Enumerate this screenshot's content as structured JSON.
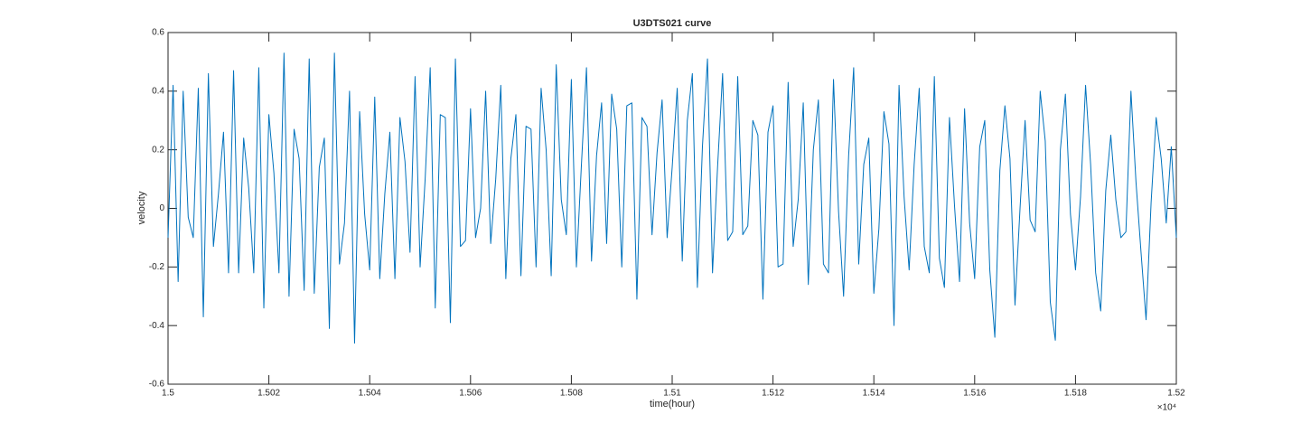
{
  "chart_data": {
    "type": "line",
    "title": "U3DTS021 curve",
    "xlabel": "time(hour)",
    "ylabel": "velocity",
    "x_multiplier": "×10⁴",
    "x": [
      15000,
      15001,
      15002,
      15003,
      15004,
      15005,
      15006,
      15007,
      15008,
      15009,
      15010,
      15011,
      15012,
      15013,
      15014,
      15015,
      15016,
      15017,
      15018,
      15019,
      15020,
      15021,
      15022,
      15023,
      15024,
      15025,
      15026,
      15027,
      15028,
      15029,
      15030,
      15031,
      15032,
      15033,
      15034,
      15035,
      15036,
      15037,
      15038,
      15039,
      15040,
      15041,
      15042,
      15043,
      15044,
      15045,
      15046,
      15047,
      15048,
      15049,
      15050,
      15051,
      15052,
      15053,
      15054,
      15055,
      15056,
      15057,
      15058,
      15059,
      15060,
      15061,
      15062,
      15063,
      15064,
      15065,
      15066,
      15067,
      15068,
      15069,
      15070,
      15071,
      15072,
      15073,
      15074,
      15075,
      15076,
      15077,
      15078,
      15079,
      15080,
      15081,
      15082,
      15083,
      15084,
      15085,
      15086,
      15087,
      15088,
      15089,
      15090,
      15091,
      15092,
      15093,
      15094,
      15095,
      15096,
      15097,
      15098,
      15099,
      15100,
      15101,
      15102,
      15103,
      15104,
      15105,
      15106,
      15107,
      15108,
      15109,
      15110,
      15111,
      15112,
      15113,
      15114,
      15115,
      15116,
      15117,
      15118,
      15119,
      15120,
      15121,
      15122,
      15123,
      15124,
      15125,
      15126,
      15127,
      15128,
      15129,
      15130,
      15131,
      15132,
      15133,
      15134,
      15135,
      15136,
      15137,
      15138,
      15139,
      15140,
      15141,
      15142,
      15143,
      15144,
      15145,
      15146,
      15147,
      15148,
      15149,
      15150,
      15151,
      15152,
      15153,
      15154,
      15155,
      15156,
      15157,
      15158,
      15159,
      15160,
      15161,
      15162,
      15163,
      15164,
      15165,
      15166,
      15167,
      15168,
      15169,
      15170,
      15171,
      15172,
      15173,
      15174,
      15175,
      15176,
      15177,
      15178,
      15179,
      15180,
      15181,
      15182,
      15183,
      15184,
      15185,
      15186,
      15187,
      15188,
      15189,
      15190,
      15191,
      15192,
      15193,
      15194,
      15195,
      15196,
      15197,
      15198,
      15199,
      15200
    ],
    "series": [
      {
        "name": "velocity",
        "color": "#0072bd",
        "values": [
          -0.1,
          0.42,
          -0.25,
          0.4,
          -0.03,
          -0.1,
          0.41,
          -0.37,
          0.46,
          -0.13,
          0.05,
          0.26,
          -0.22,
          0.47,
          -0.22,
          0.24,
          0.07,
          -0.22,
          0.48,
          -0.34,
          0.32,
          0.12,
          -0.22,
          0.53,
          -0.3,
          0.27,
          0.17,
          -0.28,
          0.51,
          -0.29,
          0.14,
          0.24,
          -0.41,
          0.53,
          -0.19,
          -0.05,
          0.4,
          -0.46,
          0.33,
          -0.02,
          -0.21,
          0.38,
          -0.24,
          0.05,
          0.26,
          -0.24,
          0.31,
          0.16,
          -0.15,
          0.45,
          -0.2,
          0.1,
          0.48,
          -0.34,
          0.32,
          0.31,
          -0.39,
          0.51,
          -0.13,
          -0.11,
          0.34,
          -0.1,
          0.0,
          0.4,
          -0.12,
          0.1,
          0.42,
          -0.24,
          0.17,
          0.32,
          -0.23,
          0.28,
          0.27,
          -0.2,
          0.41,
          0.2,
          -0.23,
          0.49,
          0.03,
          -0.09,
          0.44,
          -0.2,
          0.15,
          0.48,
          -0.18,
          0.18,
          0.36,
          -0.12,
          0.39,
          0.27,
          -0.2,
          0.35,
          0.36,
          -0.31,
          0.31,
          0.28,
          -0.09,
          0.19,
          0.37,
          -0.1,
          0.14,
          0.41,
          -0.18,
          0.3,
          0.46,
          -0.27,
          0.21,
          0.51,
          -0.22,
          0.14,
          0.46,
          -0.11,
          -0.08,
          0.45,
          -0.09,
          -0.06,
          0.3,
          0.25,
          -0.31,
          0.26,
          0.35,
          -0.2,
          -0.19,
          0.43,
          -0.13,
          0.03,
          0.36,
          -0.26,
          0.2,
          0.37,
          -0.19,
          -0.22,
          0.44,
          -0.01,
          -0.3,
          0.18,
          0.48,
          -0.19,
          0.15,
          0.24,
          -0.29,
          -0.07,
          0.33,
          0.22,
          -0.4,
          0.42,
          0.04,
          -0.21,
          0.15,
          0.41,
          -0.13,
          -0.22,
          0.45,
          -0.17,
          -0.27,
          0.31,
          0.01,
          -0.25,
          0.34,
          -0.05,
          -0.24,
          0.21,
          0.3,
          -0.21,
          -0.44,
          0.13,
          0.35,
          0.17,
          -0.33,
          0.0,
          0.3,
          -0.04,
          -0.08,
          0.4,
          0.23,
          -0.32,
          -0.45,
          0.2,
          0.39,
          -0.02,
          -0.21,
          0.04,
          0.42,
          0.15,
          -0.22,
          -0.35,
          0.06,
          0.25,
          0.03,
          -0.1,
          -0.08,
          0.4,
          0.09,
          -0.15,
          -0.38,
          0.02,
          0.31,
          0.17,
          -0.05,
          0.21,
          -0.1
        ]
      }
    ],
    "xlim": [
      15000,
      15200
    ],
    "xticks": [
      {
        "value": 15000,
        "label": "1.5"
      },
      {
        "value": 15020,
        "label": "1.502"
      },
      {
        "value": 15040,
        "label": "1.504"
      },
      {
        "value": 15060,
        "label": "1.506"
      },
      {
        "value": 15080,
        "label": "1.508"
      },
      {
        "value": 15100,
        "label": "1.51"
      },
      {
        "value": 15120,
        "label": "1.512"
      },
      {
        "value": 15140,
        "label": "1.514"
      },
      {
        "value": 15160,
        "label": "1.516"
      },
      {
        "value": 15180,
        "label": "1.518"
      },
      {
        "value": 15200,
        "label": "1.52"
      }
    ],
    "ylim": [
      -0.6,
      0.6
    ],
    "yticks": [
      -0.6,
      -0.4,
      -0.2,
      0,
      0.2,
      0.4,
      0.6
    ],
    "grid": false
  }
}
